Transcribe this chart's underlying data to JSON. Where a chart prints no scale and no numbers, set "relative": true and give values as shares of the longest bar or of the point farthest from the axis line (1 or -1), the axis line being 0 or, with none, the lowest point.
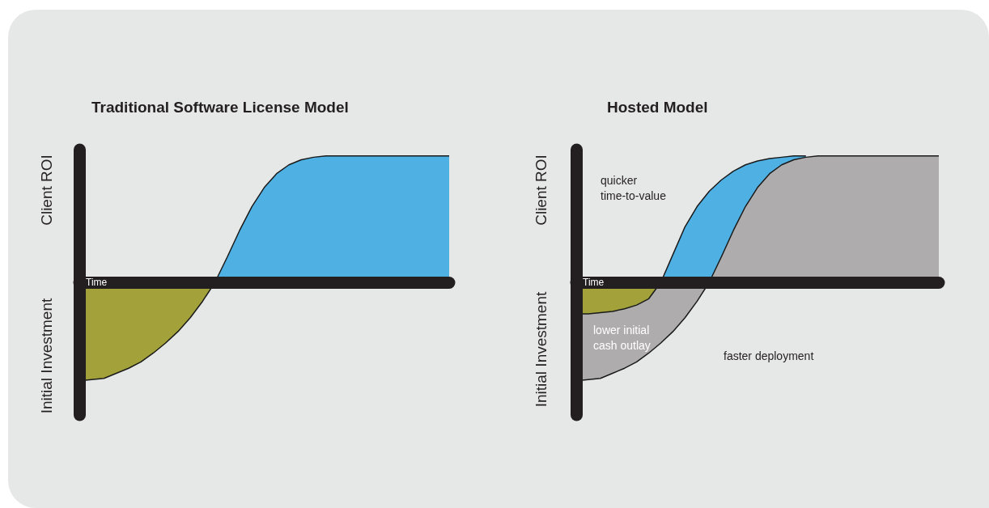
{
  "chart_data": [
    {
      "type": "area",
      "title": "Traditional Software License Model",
      "xlabel": "Time",
      "ylabel": "Client ROI",
      "annotations": [
        "Initial Investment"
      ],
      "relative": true,
      "tick_labels": false,
      "grid": false,
      "categories": [
        null,
        null,
        null,
        null,
        null,
        null,
        null,
        null,
        null,
        null,
        null,
        null,
        null,
        null,
        null,
        null,
        null,
        null,
        null,
        null,
        null,
        null,
        null,
        null,
        null,
        null,
        null,
        null,
        null,
        null,
        null
      ],
      "series": [
        {
          "color": "#a3a23a",
          "values": [
            -0.78,
            -0.77,
            -0.76,
            -0.72,
            -0.68,
            -0.63,
            -0.56,
            -0.48,
            -0.39,
            -0.28,
            -0.15,
            0,
            null,
            null,
            null,
            null,
            null,
            null,
            null,
            null,
            null,
            null,
            null,
            null,
            null,
            null,
            null,
            null,
            null,
            null,
            null
          ]
        },
        {
          "color": "#4fb0e4",
          "values": [
            null,
            null,
            null,
            null,
            null,
            null,
            null,
            null,
            null,
            null,
            null,
            0,
            0.2,
            0.41,
            0.6,
            0.75,
            0.86,
            0.93,
            0.97,
            0.99,
            1,
            1,
            1,
            1,
            1,
            1,
            1,
            1,
            1,
            1,
            1
          ]
        }
      ]
    },
    {
      "type": "area",
      "title": "Hosted Model",
      "xlabel": "Time",
      "ylabel": "Client ROI",
      "annotations": [
        "Initial Investment",
        "quicker time-to-value",
        "lower initial cash outlay",
        "faster deployment"
      ],
      "relative": true,
      "tick_labels": false,
      "grid": false,
      "categories": [
        null,
        null,
        null,
        null,
        null,
        null,
        null,
        null,
        null,
        null,
        null,
        null,
        null,
        null,
        null,
        null,
        null,
        null,
        null,
        null,
        null,
        null,
        null,
        null,
        null,
        null,
        null,
        null,
        null,
        null,
        null
      ],
      "series": [
        {
          "color": "#4fb0e4",
          "values": [
            null,
            null,
            null,
            null,
            null,
            null,
            null,
            0,
            0.22,
            0.44,
            0.6,
            0.72,
            0.81,
            0.88,
            0.93,
            0.96,
            0.98,
            0.99,
            1,
            1,
            null,
            null,
            null,
            null,
            null,
            null,
            null,
            null,
            null,
            null,
            null
          ]
        },
        {
          "color": "#aeacac",
          "values": [
            -0.78,
            -0.77,
            -0.76,
            -0.72,
            -0.68,
            -0.63,
            -0.56,
            -0.48,
            -0.39,
            -0.28,
            -0.15,
            0,
            0.2,
            0.41,
            0.6,
            0.75,
            0.86,
            0.93,
            0.97,
            0.99,
            1,
            1,
            1,
            1,
            1,
            1,
            1,
            1,
            1,
            1,
            1
          ]
        },
        {
          "color": "#a3a23a",
          "values": [
            -0.25,
            -0.25,
            -0.24,
            -0.23,
            -0.21,
            -0.18,
            -0.13,
            0,
            null,
            null,
            null,
            null,
            null,
            null,
            null,
            null,
            null,
            null,
            null,
            null,
            null,
            null,
            null,
            null,
            null,
            null,
            null,
            null,
            null,
            null,
            null
          ]
        }
      ]
    }
  ]
}
